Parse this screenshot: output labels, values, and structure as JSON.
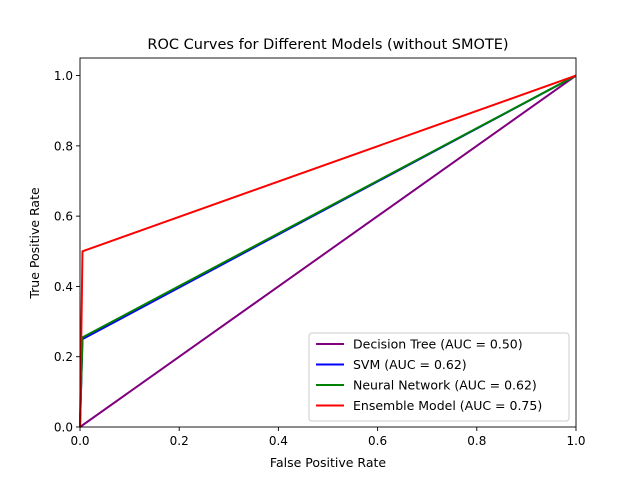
{
  "chart_data": {
    "type": "line",
    "title": "ROC Curves for Different Models (without SMOTE)",
    "xlabel": "False Positive Rate",
    "ylabel": "True Positive Rate",
    "xlim": [
      0.0,
      1.0
    ],
    "ylim": [
      0.0,
      1.05
    ],
    "xticks": [
      0.0,
      0.2,
      0.4,
      0.6,
      0.8,
      1.0
    ],
    "yticks": [
      0.0,
      0.2,
      0.4,
      0.6,
      0.8,
      1.0
    ],
    "xtick_labels": [
      "0.0",
      "0.2",
      "0.4",
      "0.6",
      "0.8",
      "1.0"
    ],
    "ytick_labels": [
      "0.0",
      "0.2",
      "0.4",
      "0.6",
      "0.8",
      "1.0"
    ],
    "grid": false,
    "legend_position": "lower-right",
    "diagonal_reference": {
      "points": [
        [
          0,
          0
        ],
        [
          1,
          1
        ]
      ],
      "color": "#777777",
      "style": "dashed"
    },
    "series": [
      {
        "name": "Decision Tree (AUC = 0.50)",
        "color": "#800080",
        "points": [
          [
            0,
            0
          ],
          [
            1,
            1
          ]
        ]
      },
      {
        "name": "SVM (AUC = 0.62)",
        "color": "#0000ff",
        "points": [
          [
            0,
            0
          ],
          [
            0.005,
            0.25
          ],
          [
            1,
            1
          ]
        ]
      },
      {
        "name": "Neural Network (AUC = 0.62)",
        "color": "#008000",
        "points": [
          [
            0,
            0
          ],
          [
            0.005,
            0.255
          ],
          [
            1,
            1
          ]
        ]
      },
      {
        "name": "Ensemble Model (AUC = 0.75)",
        "color": "#ff0000",
        "points": [
          [
            0,
            0
          ],
          [
            0.005,
            0.5
          ],
          [
            1,
            1
          ]
        ]
      }
    ]
  }
}
